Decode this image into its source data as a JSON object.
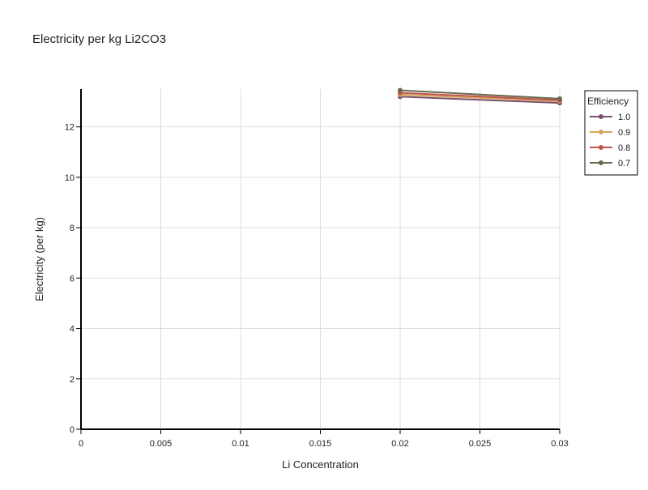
{
  "chart_data": {
    "type": "line",
    "title": "Electricity per kg Li2CO3",
    "xlabel": "Li Concentration",
    "ylabel": "Electricity (per kg)",
    "xlim": [
      0,
      0.03
    ],
    "ylim": [
      0,
      13.5
    ],
    "x_ticks": [
      0,
      0.005,
      0.01,
      0.015,
      0.02,
      0.025,
      0.03
    ],
    "x_tick_labels": [
      "0",
      "0.005",
      "0.01",
      "0.015",
      "0.02",
      "0.025",
      "0.03"
    ],
    "y_ticks": [
      0,
      2,
      4,
      6,
      8,
      10,
      12
    ],
    "y_tick_labels": [
      "0",
      "2",
      "4",
      "6",
      "8",
      "10",
      "12"
    ],
    "grid": true,
    "legend": {
      "title": "Efficiency",
      "position": "top-right"
    },
    "x": [
      0.02,
      0.03
    ],
    "series": [
      {
        "name": "1.0",
        "color": "#7b4f6e",
        "values": [
          13.2,
          12.95
        ]
      },
      {
        "name": "0.9",
        "color": "#d4a85a",
        "values": [
          13.28,
          13.02
        ]
      },
      {
        "name": "0.8",
        "color": "#c0544f",
        "values": [
          13.35,
          13.06
        ]
      },
      {
        "name": "0.7",
        "color": "#6b6a4e",
        "values": [
          13.45,
          13.12
        ]
      }
    ]
  }
}
